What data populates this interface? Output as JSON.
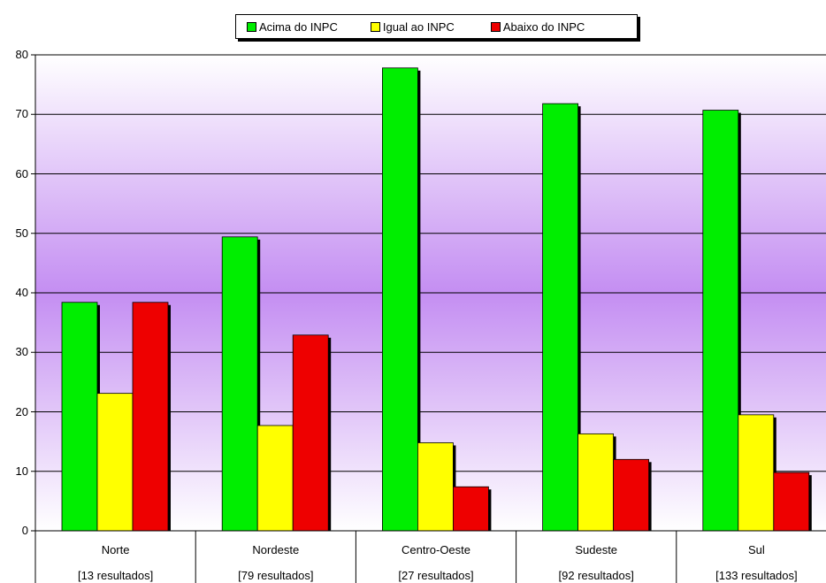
{
  "chart_data": {
    "type": "bar",
    "categories": [
      "Norte",
      "Nordeste",
      "Centro-Oeste",
      "Sudeste",
      "Sul"
    ],
    "category_sublabels": [
      "[13 resultados]",
      "[79 resultados]",
      "[27 resultados]",
      "[92 resultados]",
      "[133 resultados]"
    ],
    "series": [
      {
        "name": "Acima do INPC",
        "color": "#00ee00",
        "values": [
          38.4,
          49.4,
          77.8,
          71.8,
          70.7
        ]
      },
      {
        "name": "Igual ao INPC",
        "color": "#ffff00",
        "values": [
          23.1,
          17.7,
          14.8,
          16.3,
          19.5
        ]
      },
      {
        "name": "Abaixo do INPC",
        "color": "#ee0000",
        "values": [
          38.4,
          32.9,
          7.4,
          12.0,
          9.8
        ]
      }
    ],
    "ylim": [
      0,
      80
    ],
    "yticks": [
      0,
      10,
      20,
      30,
      40,
      50,
      60,
      70,
      80
    ],
    "grid": true,
    "legend_position": "top"
  }
}
